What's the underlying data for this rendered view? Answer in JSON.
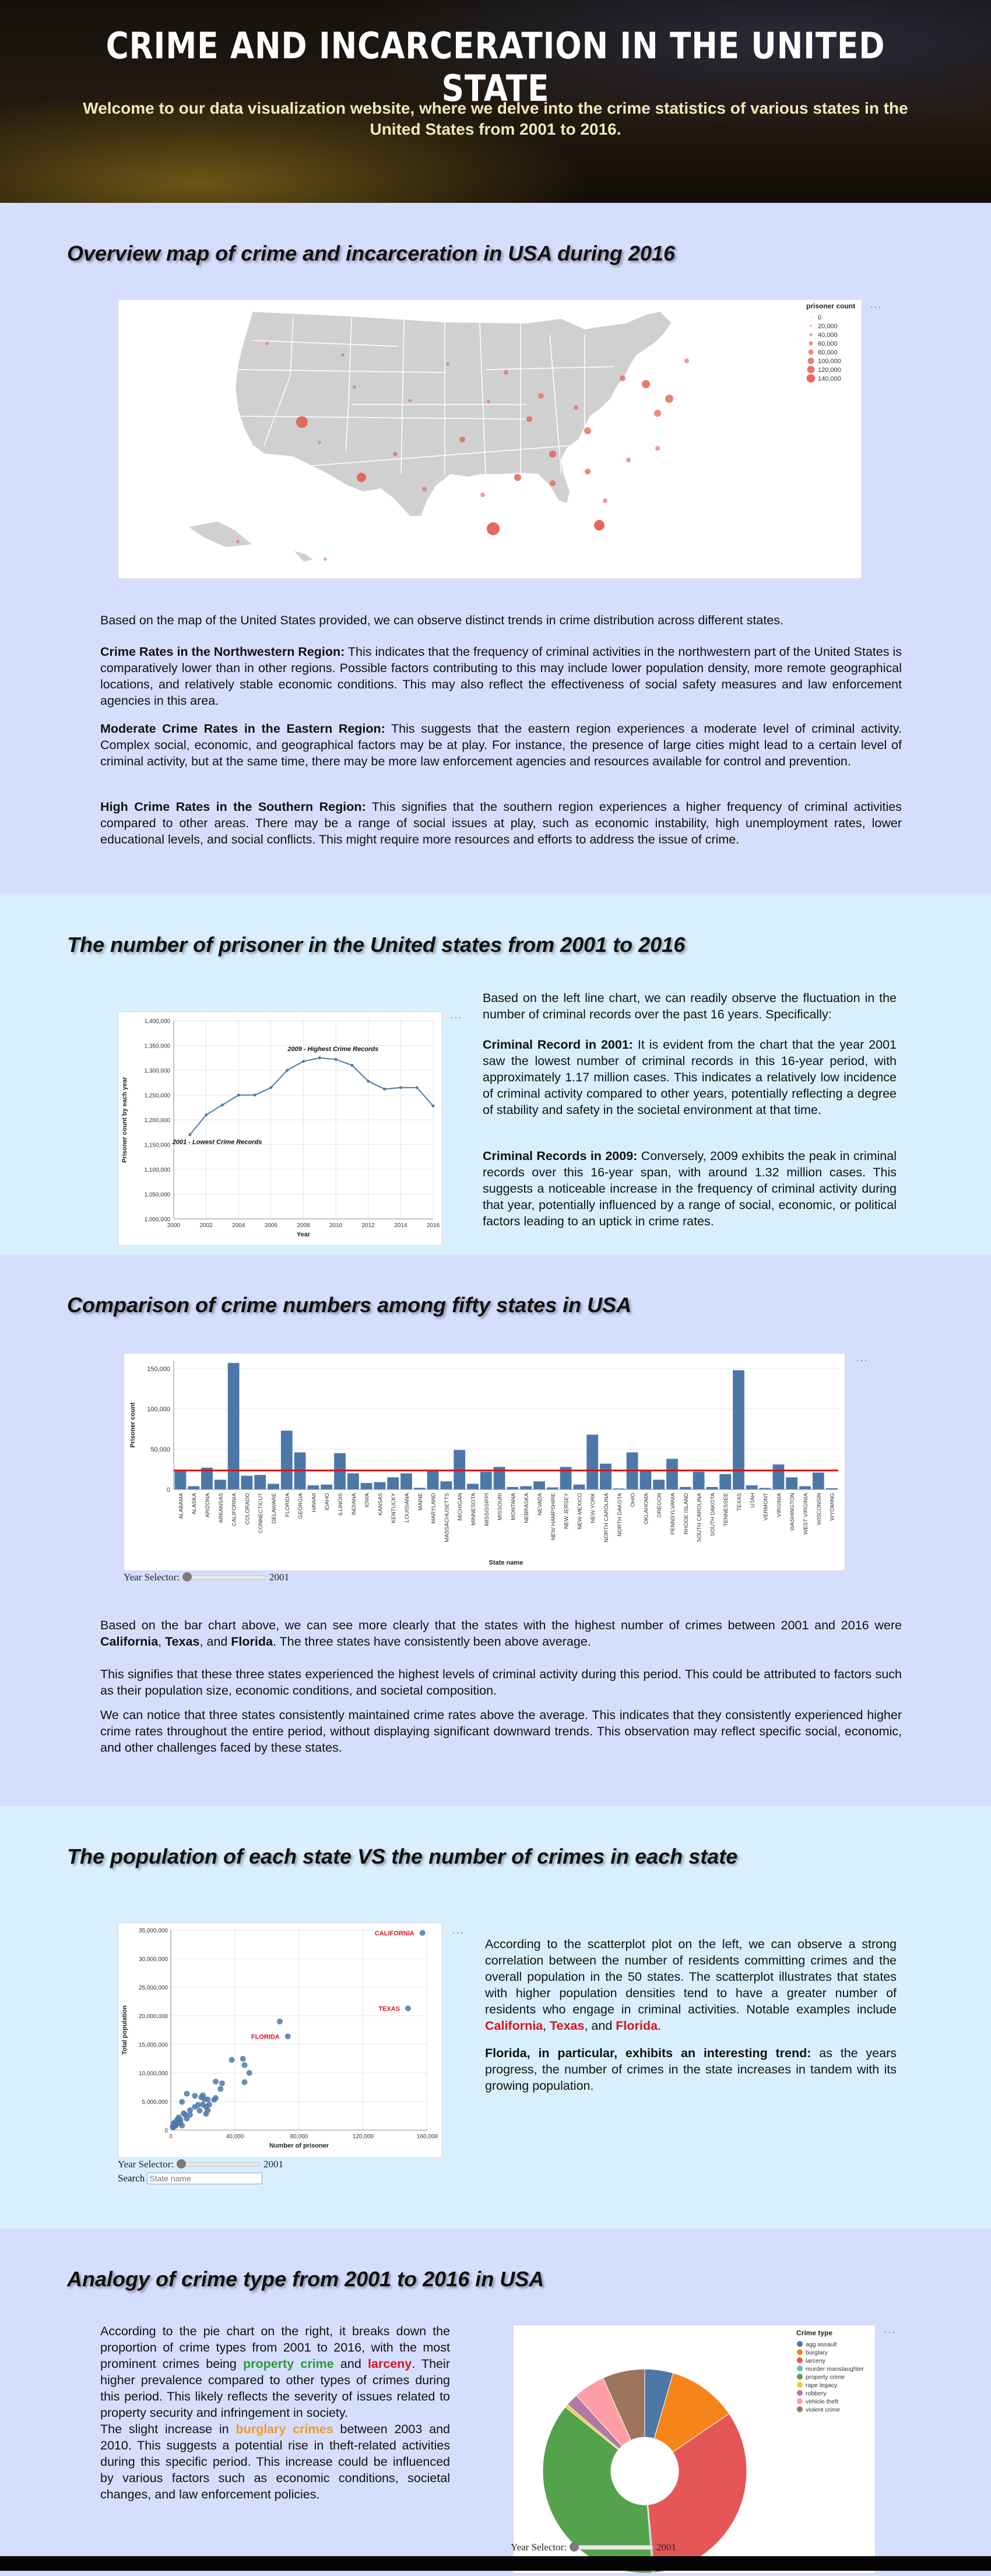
{
  "hero": {
    "title": "CRIME AND INCARCERATION IN THE UNITED STATE",
    "subtitle": "Welcome to our data visualization website, where we delve into the crime statistics of various states in the United States from 2001 to 2016."
  },
  "colors": {
    "bar": "#4c78a8",
    "mean_line": "#e0101a",
    "map_dot": "#e4574c",
    "label_red": "#d8141e"
  },
  "map_section": {
    "heading": "Overview map of crime and incarceration in USA during 2016",
    "legend_title": "prisoner count",
    "legend_values": [
      "0",
      "20,000",
      "40,000",
      "60,000",
      "80,000",
      "100,000",
      "120,000",
      "140,000"
    ],
    "menu": "···",
    "intro": "Based on the map of the United States provided, we can observe distinct trends in crime distribution across different states.",
    "points": [
      {
        "title": "Crime Rates in the Northwestern Region:",
        "text": " This indicates that the frequency of criminal activities in the northwestern part of the United States is comparatively lower than in other regions. Possible factors contributing to this may include lower population density, more remote geographical locations, and relatively stable economic conditions. This may also reflect the effectiveness of social safety measures and law enforcement agencies in this area."
      },
      {
        "title": "Moderate Crime Rates in the Eastern Region:",
        "text": " This suggests that the eastern region experiences a moderate level of criminal activity. Complex social, economic, and geographical factors may be at play. For instance, the presence of large cities might lead to a certain level of criminal activity, but at the same time, there may be more law enforcement agencies and resources available for control and prevention."
      },
      {
        "title": "High Crime Rates in the Southern Region:",
        "text": " This signifies that the southern region experiences a higher frequency of criminal activities compared to other areas. There may be a range of social issues at play, such as economic instability, high unemployment rates, lower educational levels, and social conflicts. This might require more resources and efforts to address the issue of crime."
      }
    ]
  },
  "line_section": {
    "heading": "The number of prisoner in the United states from 2001 to 2016",
    "menu": "···",
    "annot_high": "2009 - Highest Crime Records",
    "annot_low": "2001 - Lowest Crime Records",
    "intro": "Based on the left line chart, we can readily observe the fluctuation in the number of criminal records over the past 16 years. Specifically:",
    "points": [
      {
        "title": "Criminal Record in 2001:",
        "text": " It is evident from the chart that the year 2001 saw the lowest number of criminal records in this 16-year period, with approximately 1.17 million cases. This indicates a relatively low incidence of criminal activity compared to other years, potentially reflecting a degree of stability and safety in the societal environment at that time."
      },
      {
        "title": "Criminal Records in 2009:",
        "text": " Conversely, 2009 exhibits the peak in criminal records over this 16-year span, with around 1.32 million cases. This suggests a noticeable increase in the frequency of criminal activity during that year, potentially influenced by a range of social, economic, or political factors leading to an uptick in crime rates."
      }
    ]
  },
  "bar_section": {
    "heading": "Comparison of crime numbers among fifty states in USA",
    "menu": "···",
    "slider_label": "Year Selector:",
    "slider_value": "2001",
    "p1_pre": "Based on the bar chart above, we can see more clearly that the states with the highest number of crimes between 2001 and 2016 were ",
    "p1_s1": "California",
    "p1_c1": ", ",
    "p1_s2": "Texas",
    "p1_c2": ", and ",
    "p1_s3": "Florida",
    "p1_post": ". The three states have consistently been above average.",
    "p2": "This signifies that these three states experienced the highest levels of criminal activity during this period. This could be attributed to factors such as their population size, economic conditions, and societal composition.",
    "p3": "We can notice that three states consistently maintained crime rates above the average. This indicates that they consistently experienced higher crime rates throughout the entire period, without displaying significant downward trends. This observation may reflect specific social, economic, and other challenges faced by these states."
  },
  "scatter_section": {
    "heading": "The population of each state VS the number of crimes in each state",
    "menu": "···",
    "slider_label": "Year Selector:",
    "slider_value": "2001",
    "search_label": "Search",
    "search_placeholder": "State name",
    "p1_pre": "According to the scatterplot plot on the left, we can observe a strong correlation between the number of residents committing crimes and the overall population in the 50 states. The scatterplot illustrates that states with higher population densities tend to have a greater number of residents who engage in criminal activities. Notable examples include ",
    "p1_s1": "California",
    "p1_c1": ", ",
    "p1_s2": "Texas",
    "p1_c2": ", and ",
    "p1_s3": "Florida",
    "p1_post": ".",
    "p2_title": "Florida, in particular, exhibits an interesting trend:",
    "p2_text": " as the years progress, the number of crimes in the state increases in tandem with its growing population."
  },
  "pie_section": {
    "heading": "Analogy of crime type from 2001 to 2016 in USA",
    "menu": "···",
    "legend_title": "Crime type",
    "slider_label": "Year Selector:",
    "slider_value": "2001",
    "p1_pre": "According to the pie chart on the right, it breaks down the proportion of crime types from 2001 to 2016, with the most prominent crimes being ",
    "p1_g": "property crime",
    "p1_and": " and ",
    "p1_r": "larceny",
    "p1_post": ". Their higher prevalence compared to other types of crimes during this period. This likely reflects the severity of issues related to property security and infringement in society.",
    "p2_pre": "The slight increase in ",
    "p2_o": "burglary crimes",
    "p2_post": " between 2003 and 2010. This suggests a potential rise in theft-related activities during this specific period. This increase could be influenced by various factors such as economic conditions, societal changes, and law enforcement policies."
  },
  "chart_data": [
    {
      "type": "scatter",
      "subtype": "geo-bubble-map",
      "title": "",
      "size_field": "prisoner count",
      "legend_values": [
        0,
        20000,
        40000,
        60000,
        80000,
        100000,
        120000,
        140000
      ],
      "legend_placement": "top-right"
    },
    {
      "type": "line",
      "x": [
        2001,
        2002,
        2003,
        2004,
        2005,
        2006,
        2007,
        2008,
        2009,
        2010,
        2011,
        2012,
        2013,
        2014,
        2015,
        2016
      ],
      "values": [
        1170000,
        1210000,
        1230000,
        1250000,
        1250000,
        1265000,
        1300000,
        1318000,
        1325000,
        1322000,
        1310000,
        1278000,
        1262000,
        1265000,
        1265000,
        1228000
      ],
      "xlabel": "Year",
      "ylabel": "Prisoner count by each year",
      "ylim": [
        1000000,
        1400000
      ],
      "yticks": [
        "1,000,000",
        "1,050,000",
        "1,100,000",
        "1,150,000",
        "1,200,000",
        "1,250,000",
        "1,300,000",
        "1,350,000",
        "1,400,000"
      ],
      "xticks": [
        "2000",
        "2002",
        "2004",
        "2006",
        "2008",
        "2010",
        "2012",
        "2014",
        "2016"
      ],
      "grid": true
    },
    {
      "type": "bar",
      "categories": [
        "ALABAMA",
        "ALASKA",
        "ARIZONA",
        "ARKANSAS",
        "CALIFORNIA",
        "COLORADO",
        "CONNECTICUT",
        "DELAWARE",
        "FLORIDA",
        "GEORGIA",
        "HAWAII",
        "IDAHO",
        "ILLINOIS",
        "INDIANA",
        "IOWA",
        "KANSAS",
        "KENTUCKY",
        "LOUISIANA",
        "MAINE",
        "MARYLAND",
        "MASSACHUSETTS",
        "MICHIGAN",
        "MINNESOTA",
        "MISSISSIPPI",
        "MISSOURI",
        "MONTANA",
        "NEBRASKA",
        "NEVADA",
        "NEW HAMPSHIRE",
        "NEW JERSEY",
        "NEW MEXICO",
        "NEW YORK",
        "NORTH CAROLINA",
        "NORTH DAKOTA",
        "OHIO",
        "OKLAHOMA",
        "OREGON",
        "PENNSYLVANIA",
        "RHODE ISLAND",
        "SOUTH CAROLINA",
        "SOUTH DAKOTA",
        "TENNESSEE",
        "TEXAS",
        "UTAH",
        "VERMONT",
        "VIRGINIA",
        "WASHINGTON",
        "WEST VIRGINIA",
        "WISCONSIN",
        "WYOMING"
      ],
      "values": [
        24000,
        4000,
        27000,
        12000,
        157000,
        17000,
        18000,
        7000,
        73000,
        46000,
        5000,
        6000,
        45000,
        20000,
        8000,
        9000,
        15000,
        20000,
        2000,
        23000,
        10000,
        49000,
        7000,
        22000,
        28000,
        3000,
        4000,
        10000,
        2500,
        28000,
        6000,
        68000,
        32000,
        1200,
        46000,
        23000,
        12000,
        38000,
        3000,
        22000,
        3000,
        19000,
        148000,
        5000,
        1800,
        31000,
        15000,
        4000,
        21000,
        1500
      ],
      "reference_line": 23500,
      "xlabel": "State name",
      "ylabel": "Prisoner count",
      "ylim": [
        0,
        160000
      ],
      "yticks": [
        "0",
        "50,000",
        "100,000",
        "150,000"
      ],
      "grid": true
    },
    {
      "type": "scatter",
      "xlabel": "Number of prisoner",
      "ylabel": "Total population",
      "xlim": [
        0,
        160000
      ],
      "ylim": [
        0,
        35000000
      ],
      "xticks": [
        "0",
        "40,000",
        "80,000",
        "120,000",
        "160,000"
      ],
      "yticks": [
        "0",
        "5,000,000",
        "10,000,000",
        "15,000,000",
        "20,000,000",
        "25,000,000",
        "30,000,000",
        "35,000,000"
      ],
      "labels": [
        {
          "name": "CALIFORNIA",
          "x": 157000,
          "y": 34500000
        },
        {
          "name": "TEXAS",
          "x": 148000,
          "y": 21300000
        },
        {
          "name": "FLORIDA",
          "x": 73000,
          "y": 16400000
        }
      ],
      "points": [
        [
          1200,
          640000
        ],
        [
          1500,
          490000
        ],
        [
          1800,
          610000
        ],
        [
          2000,
          1270000
        ],
        [
          2500,
          1250000
        ],
        [
          3000,
          1050000
        ],
        [
          3000,
          760000
        ],
        [
          3000,
          900000
        ],
        [
          4000,
          1810000
        ],
        [
          4000,
          1710000
        ],
        [
          5000,
          1210000
        ],
        [
          5000,
          2230000
        ],
        [
          6000,
          1290000
        ],
        [
          6000,
          1820000
        ],
        [
          7000,
          790000
        ],
        [
          7000,
          4930000
        ],
        [
          8000,
          2930000
        ],
        [
          9000,
          2690000
        ],
        [
          10000,
          2010000
        ],
        [
          10000,
          6370000
        ],
        [
          12000,
          2680000
        ],
        [
          12000,
          3470000
        ],
        [
          15000,
          5990000
        ],
        [
          15000,
          4060000
        ],
        [
          17000,
          4410000
        ],
        [
          18000,
          3410000
        ],
        [
          19000,
          5740000
        ],
        [
          20000,
          4470000
        ],
        [
          20000,
          6080000
        ],
        [
          21000,
          5400000
        ],
        [
          22000,
          2850000
        ],
        [
          22000,
          4060000
        ],
        [
          23000,
          5370000
        ],
        [
          23000,
          3460000
        ],
        [
          24000,
          4460000
        ],
        [
          27000,
          5310000
        ],
        [
          28000,
          5610000
        ],
        [
          28000,
          8480000
        ],
        [
          31000,
          7190000
        ],
        [
          32000,
          8190000
        ],
        [
          38000,
          12290000
        ],
        [
          45000,
          12480000
        ],
        [
          46000,
          11370000
        ],
        [
          46000,
          8380000
        ],
        [
          49000,
          10000000
        ],
        [
          68000,
          19000000
        ],
        [
          73000,
          16400000
        ],
        [
          148000,
          21300000
        ],
        [
          157000,
          34500000
        ]
      ],
      "grid": true
    },
    {
      "type": "pie",
      "subtype": "donut",
      "legend_title": "Crime type",
      "legend_placement": "top-right",
      "slices": [
        {
          "name": "agg assault",
          "value": 4.5,
          "color": "#4c78a8"
        },
        {
          "name": "burglary",
          "value": 11,
          "color": "#f58518"
        },
        {
          "name": "larceny",
          "value": 33,
          "color": "#e45756"
        },
        {
          "name": "murder manslaughter",
          "value": 0.3,
          "color": "#72b7b2"
        },
        {
          "name": "property crime",
          "value": 37,
          "color": "#54a24b"
        },
        {
          "name": "rape legacy",
          "value": 0.5,
          "color": "#eeca3b"
        },
        {
          "name": "robbery",
          "value": 2,
          "color": "#b279a2"
        },
        {
          "name": "vehicle theft",
          "value": 5,
          "color": "#ff9da6"
        },
        {
          "name": "violent crime",
          "value": 6.7,
          "color": "#9d755d"
        }
      ]
    }
  ]
}
